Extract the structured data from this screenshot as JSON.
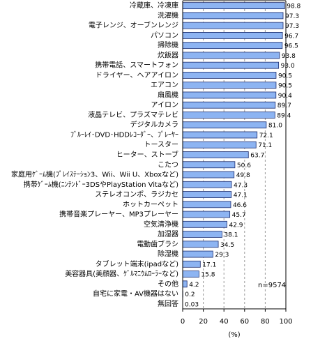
{
  "chart_data": {
    "type": "hbar",
    "categories": [
      "冷蔵庫、冷凍庫",
      "洗濯機",
      "電子レンジ、オーブンレンジ",
      "パソコン",
      "掃除機",
      "炊飯器",
      "携帯電話、スマートフォン",
      "ドライヤー、ヘアアイロン",
      "エアコン",
      "扇風機",
      "アイロン",
      "液晶テレビ、プラズマテレビ",
      "デジタルカメラ",
      "ﾌﾞﾙｰﾚｲ･DVD･HDDﾚｺｰﾀﾞｰ、ﾌﾟﾚｰﾔｰ",
      "トースター",
      "ヒーター、ストーブ",
      "こたつ",
      "家庭用ｹﾞｰﾑ機(ﾌﾟﾚｲｽﾃｰｼｮﾝ3、Wii、Wii U、Xboxなど)",
      "携帯ｹﾞｰﾑ機(ﾆﾝﾃﾝﾄﾞｰ3DSやPlayStation Vitaなど)",
      "ステレオコンポ、ラジカセ",
      "ホットカーペット",
      "携帯音楽プレーヤー、MP3プレーヤー",
      "空気清浄機",
      "加湿器",
      "電動歯ブラシ",
      "除湿機",
      "タブレット端末(ipadなど)",
      "美容器具(美顔器、ｹﾞﾙﾏﾆｳﾑﾛｰﾗｰなど)",
      "その他",
      "自宅に家電・AV機器はない",
      "無回答"
    ],
    "values": [
      98.8,
      97.3,
      97.3,
      96.7,
      96.5,
      93.8,
      93.0,
      90.5,
      90.5,
      90.4,
      89.7,
      89.4,
      81.0,
      72.1,
      71.1,
      63.7,
      50.6,
      49.8,
      47.3,
      47.1,
      46.6,
      45.7,
      42.9,
      38.1,
      34.5,
      29.3,
      17.1,
      15.8,
      4.2,
      0.2,
      0.03
    ],
    "value_labels": [
      "98.8",
      "97.3",
      "97.3",
      "96.7",
      "96.5",
      "93.8",
      "93.0",
      "90.5",
      "90.5",
      "90.4",
      "89.7",
      "89.4",
      "81.0",
      "72.1",
      "71.1",
      "63.7",
      "50.6",
      "49.8",
      "47.3",
      "47.1",
      "46.6",
      "45.7",
      "42.9",
      "38.1",
      "34.5",
      "29.3",
      "17.1",
      "15.8",
      "4.2",
      "0.2",
      "0.03"
    ],
    "color": "#8db4f2",
    "xlim": [
      0,
      100
    ],
    "xticks": [
      0,
      20,
      40,
      60,
      80,
      100
    ],
    "xlabel": "(%)",
    "annotation": "n=9574",
    "grid": true
  }
}
